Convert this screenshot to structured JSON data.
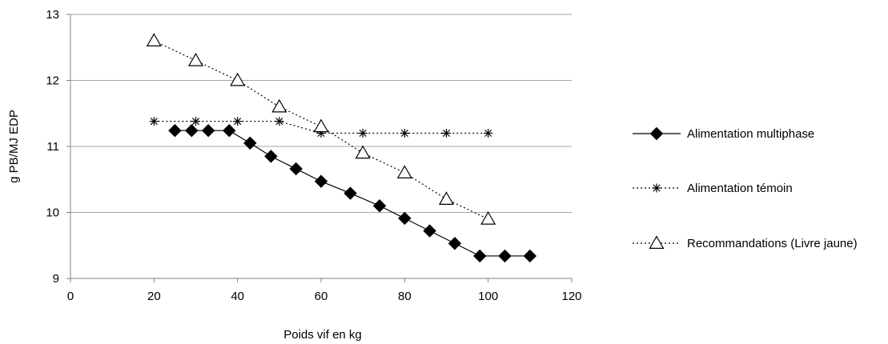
{
  "chart_data": {
    "type": "line",
    "xlabel": "Poids vif en kg",
    "ylabel": "g PB/MJ EDP",
    "xlim": [
      0,
      120
    ],
    "ylim": [
      9,
      13
    ],
    "x_ticks": [
      "0",
      "20",
      "40",
      "60",
      "80",
      "100",
      "120"
    ],
    "y_ticks": [
      "9",
      "10",
      "11",
      "12",
      "13"
    ],
    "grid": "horizontal",
    "legend_position": "right",
    "series": [
      {
        "name": "Alimentation multiphase",
        "marker": "diamond",
        "line": "solid",
        "points": [
          [
            25,
            11.24
          ],
          [
            29,
            11.24
          ],
          [
            33,
            11.24
          ],
          [
            38,
            11.24
          ],
          [
            43,
            11.05
          ],
          [
            48,
            10.85
          ],
          [
            54,
            10.66
          ],
          [
            60,
            10.47
          ],
          [
            67,
            10.29
          ],
          [
            74,
            10.1
          ],
          [
            80,
            9.91
          ],
          [
            86,
            9.72
          ],
          [
            92,
            9.53
          ],
          [
            98,
            9.34
          ],
          [
            104,
            9.34
          ],
          [
            110,
            9.34
          ]
        ]
      },
      {
        "name": "Alimentation témoin",
        "marker": "asterisk",
        "line": "dotted",
        "points": [
          [
            20,
            11.38
          ],
          [
            30,
            11.38
          ],
          [
            40,
            11.38
          ],
          [
            50,
            11.38
          ],
          [
            60,
            11.2
          ],
          [
            70,
            11.2
          ],
          [
            80,
            11.2
          ],
          [
            90,
            11.2
          ],
          [
            100,
            11.2
          ]
        ]
      },
      {
        "name": "Recommandations (Livre jaune)",
        "marker": "triangle",
        "line": "dotted",
        "points": [
          [
            20,
            12.6
          ],
          [
            30,
            12.3
          ],
          [
            40,
            12.0
          ],
          [
            50,
            11.6
          ],
          [
            60,
            11.3
          ],
          [
            70,
            10.9
          ],
          [
            80,
            10.6
          ],
          [
            90,
            10.2
          ],
          [
            100,
            9.9
          ]
        ]
      }
    ]
  }
}
